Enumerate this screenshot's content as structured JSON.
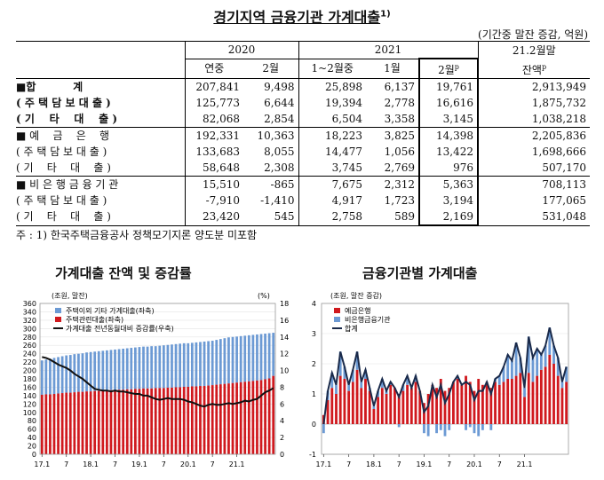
{
  "title": "경기지역 금융기관 가계대출",
  "title_sup": "1)",
  "unit": "(기간중 말잔 증감, 억원)",
  "table": {
    "year_headers": [
      "2020",
      "2021",
      "21.2월말"
    ],
    "sub_headers": [
      "연중",
      "2월",
      "1~2월중",
      "1월",
      "2월",
      "잔액"
    ],
    "p_mark": "p",
    "rows": [
      {
        "label": "■합          계",
        "bold": true,
        "values": [
          "207,841",
          "9,498",
          "25,898",
          "6,137",
          "19,761",
          "2,913,949"
        ]
      },
      {
        "label": "( 주 택 담 보 대 출 )",
        "bold": true,
        "values": [
          "125,773",
          "6,644",
          "19,394",
          "2,778",
          "16,616",
          "1,875,732"
        ]
      },
      {
        "label": "( 기    타    대    출 )",
        "bold": true,
        "values": [
          "82,068",
          "2,854",
          "6,504",
          "3,358",
          "3,145",
          "1,038,218"
        ]
      },
      {
        "label": "■ 예    금    은    행",
        "bold": false,
        "values": [
          "192,331",
          "10,363",
          "18,223",
          "3,825",
          "14,398",
          "2,205,836"
        ]
      },
      {
        "label": "( 주 택 담 보 대 출 )",
        "bold": false,
        "values": [
          "133,683",
          "8,055",
          "14,477",
          "1,056",
          "13,422",
          "1,698,666"
        ]
      },
      {
        "label": "( 기    타    대    출 )",
        "bold": false,
        "values": [
          "58,648",
          "2,308",
          "3,745",
          "2,769",
          "976",
          "507,170"
        ]
      },
      {
        "label": "■ 비 은 행 금 융 기 관",
        "bold": false,
        "values": [
          "15,510",
          "-865",
          "7,675",
          "2,312",
          "5,363",
          "708,113"
        ]
      },
      {
        "label": "( 주 택 담 보 대 출 )",
        "bold": false,
        "values": [
          "-7,910",
          "-1,410",
          "4,917",
          "1,723",
          "3,194",
          "177,065"
        ]
      },
      {
        "label": "( 기    타    대    출 )",
        "bold": false,
        "values": [
          "23,420",
          "545",
          "2,758",
          "589",
          "2,169",
          "531,048"
        ]
      }
    ]
  },
  "note": "주 : 1) 한국주택금융공사 정책모기지론 양도분 미포함",
  "chart_data": [
    {
      "type": "bar",
      "title": "가계대출 잔액 및 증감률",
      "left_unit": "(조원, 말잔)",
      "right_unit": "(%)",
      "x_tick_labels": [
        "17.1",
        "7",
        "18.1",
        "7",
        "19.1",
        "7",
        "20.1",
        "7",
        "21.1"
      ],
      "y_left_ticks": [
        "0",
        "20",
        "40",
        "60",
        "80",
        "100",
        "120",
        "140",
        "160",
        "180",
        "200",
        "220",
        "240",
        "260",
        "280",
        "300",
        "320",
        "340",
        "360"
      ],
      "y_left_range": [
        0,
        360
      ],
      "y_right_ticks": [
        "0",
        "2",
        "4",
        "6",
        "8",
        "10",
        "12",
        "14",
        "16",
        "18"
      ],
      "y_right_range": [
        0,
        18
      ],
      "legend": [
        "주택이외 기타 가계대출(좌축)",
        "주택관련대출(좌축)",
        "가계대출 전년동월대비 증감률(우축)"
      ],
      "colors": {
        "other": "#6c9ad4",
        "housing": "#d0191e",
        "growth": "#111111"
      },
      "x_start_month": "2017-01",
      "total": [
        224,
        226,
        228,
        230,
        232,
        234,
        236,
        237,
        239,
        240,
        241,
        243,
        244,
        245,
        246,
        247,
        248,
        249,
        250,
        251,
        252,
        253,
        254,
        255,
        256,
        257,
        257,
        258,
        258,
        259,
        260,
        261,
        262,
        263,
        264,
        265,
        265,
        266,
        267,
        268,
        269,
        270,
        271,
        273,
        275,
        277,
        279,
        280,
        281,
        282,
        283,
        284,
        285,
        286,
        287,
        288,
        289,
        290
      ],
      "housing": [
        142,
        143,
        143,
        144,
        145,
        146,
        147,
        147,
        148,
        149,
        149,
        150,
        150,
        151,
        151,
        152,
        152,
        153,
        153,
        154,
        154,
        155,
        155,
        156,
        156,
        157,
        157,
        157,
        158,
        158,
        158,
        159,
        159,
        160,
        160,
        161,
        161,
        162,
        162,
        163,
        163,
        164,
        165,
        166,
        167,
        168,
        169,
        170,
        171,
        172,
        173,
        174,
        175,
        176,
        177,
        179,
        181,
        187
      ],
      "growth_rate": [
        11.6,
        11.5,
        11.3,
        11.0,
        10.7,
        10.5,
        10.3,
        10.0,
        9.6,
        9.3,
        9.0,
        8.6,
        8.2,
        7.8,
        7.7,
        7.6,
        7.6,
        7.5,
        7.6,
        7.5,
        7.5,
        7.4,
        7.3,
        7.2,
        7.2,
        7.0,
        7.0,
        6.8,
        6.6,
        6.5,
        6.6,
        6.7,
        6.6,
        6.6,
        6.6,
        6.5,
        6.3,
        6.2,
        6.0,
        5.8,
        5.7,
        5.9,
        6.0,
        5.9,
        5.9,
        6.0,
        6.1,
        6.0,
        6.1,
        6.2,
        6.4,
        6.3,
        6.5,
        6.6,
        7.0,
        7.4,
        7.6,
        7.9
      ]
    },
    {
      "type": "bar",
      "title": "금융기관별 가계대출",
      "left_unit": "(조원, 말잔 증감)",
      "x_tick_labels": [
        "17.1",
        "7",
        "18.1",
        "7",
        "19.1",
        "7",
        "20.1",
        "7",
        "21.1"
      ],
      "y_ticks": [
        "-1",
        "0",
        "1",
        "2",
        "3",
        "4"
      ],
      "y_range": [
        -1,
        4
      ],
      "legend": [
        "예금은행",
        "비은행금융기관",
        "합계"
      ],
      "colors": {
        "bank": "#d0191e",
        "nonbank": "#6c9ad4",
        "total": "#1a2a4a"
      },
      "x_start_month": "2017-01",
      "bank": [
        0.3,
        0.8,
        1.2,
        1.0,
        1.6,
        1.5,
        1.1,
        1.4,
        1.8,
        1.2,
        1.5,
        1.1,
        0.5,
        0.9,
        1.2,
        1.0,
        1.3,
        1.2,
        1.0,
        1.1,
        1.3,
        1.2,
        1.4,
        1.1,
        0.7,
        1.0,
        1.3,
        1.2,
        1.5,
        1.1,
        1.2,
        1.4,
        1.5,
        1.3,
        1.6,
        1.4,
        1.1,
        1.5,
        1.3,
        1.4,
        1.2,
        1.4,
        1.3,
        1.4,
        1.5,
        1.5,
        1.6,
        1.7,
        0.9,
        1.7,
        1.4,
        1.6,
        1.8,
        1.9,
        2.3,
        2.0,
        1.6,
        1.2,
        1.4
      ],
      "nonbank": [
        -0.3,
        0.3,
        0.5,
        0.3,
        0.8,
        0.4,
        0.2,
        0.4,
        0.6,
        0.2,
        0.3,
        0.1,
        0.1,
        0.2,
        0.3,
        0.1,
        0.1,
        0.0,
        -0.1,
        0.2,
        0.3,
        0.0,
        0.2,
        0.0,
        -0.3,
        -0.4,
        0.0,
        -0.3,
        -0.2,
        -0.4,
        -0.2,
        0.0,
        0.1,
        0.0,
        -0.2,
        -0.1,
        -0.3,
        -0.4,
        -0.2,
        0.0,
        -0.2,
        0.1,
        0.3,
        0.5,
        0.8,
        0.6,
        1.1,
        0.5,
        0.3,
        1.2,
        0.8,
        0.9,
        0.5,
        0.7,
        0.9,
        0.6,
        0.6,
        0.2,
        0.5
      ],
      "total": [
        0.0,
        1.1,
        1.7,
        1.3,
        2.4,
        1.9,
        1.3,
        1.8,
        2.4,
        1.4,
        1.8,
        1.2,
        0.6,
        1.1,
        1.5,
        1.1,
        1.4,
        1.2,
        0.9,
        1.3,
        1.6,
        1.2,
        1.6,
        1.1,
        0.4,
        0.6,
        1.3,
        0.9,
        1.3,
        0.7,
        1.0,
        1.4,
        1.6,
        1.3,
        1.4,
        1.3,
        0.8,
        1.1,
        1.1,
        1.4,
        1.0,
        1.5,
        1.6,
        1.9,
        2.3,
        2.1,
        2.7,
        2.2,
        1.2,
        2.9,
        2.2,
        2.5,
        2.3,
        2.6,
        3.2,
        2.6,
        2.2,
        1.4,
        1.9
      ]
    }
  ]
}
